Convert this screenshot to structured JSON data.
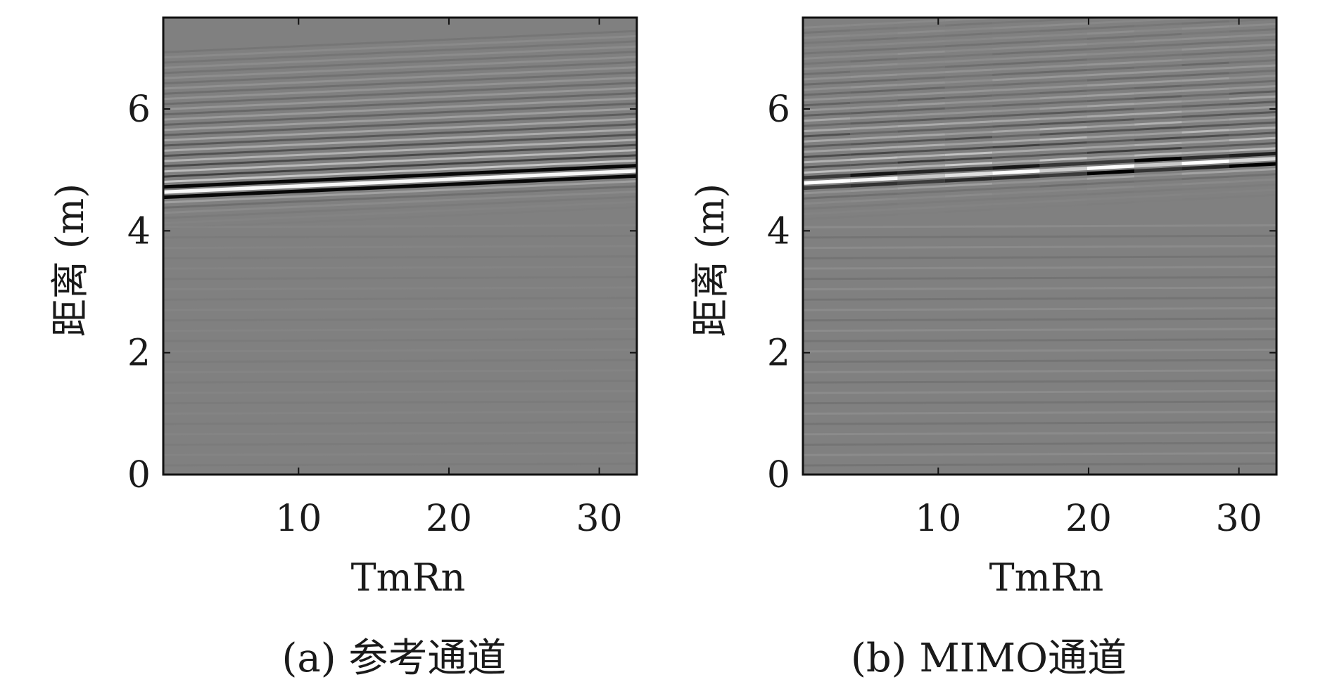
{
  "chart_data": [
    {
      "type": "heatmap",
      "title": "",
      "xlabel": "TmRn",
      "ylabel": "距离 (m)",
      "xlim": [
        1,
        32.5
      ],
      "ylim": [
        0,
        7.5
      ],
      "xticks": [
        10,
        20,
        30
      ],
      "yticks": [
        0,
        2,
        4,
        6
      ],
      "grid": false,
      "caption": "(a) 参考通道",
      "colormap": "gray",
      "background_color": "#808080",
      "main_reflector": {
        "x": [
          1,
          32.5
        ],
        "y": [
          4.55,
          4.9
        ]
      },
      "ringing_extent_m": 2.4,
      "noise_level": "low"
    },
    {
      "type": "heatmap",
      "title": "",
      "xlabel": "TmRn",
      "ylabel": "距离 (m)",
      "xlim": [
        1,
        32.5
      ],
      "ylim": [
        0,
        7.5
      ],
      "xticks": [
        10,
        20,
        30
      ],
      "yticks": [
        0,
        2,
        4,
        6
      ],
      "grid": false,
      "caption": "(b) MIMO通道",
      "colormap": "gray",
      "background_color": "#808080",
      "main_reflector": {
        "x": [
          1,
          32.5
        ],
        "y": [
          4.7,
          5.1
        ]
      },
      "ringing_extent_m": 2.6,
      "noise_level": "high"
    }
  ]
}
